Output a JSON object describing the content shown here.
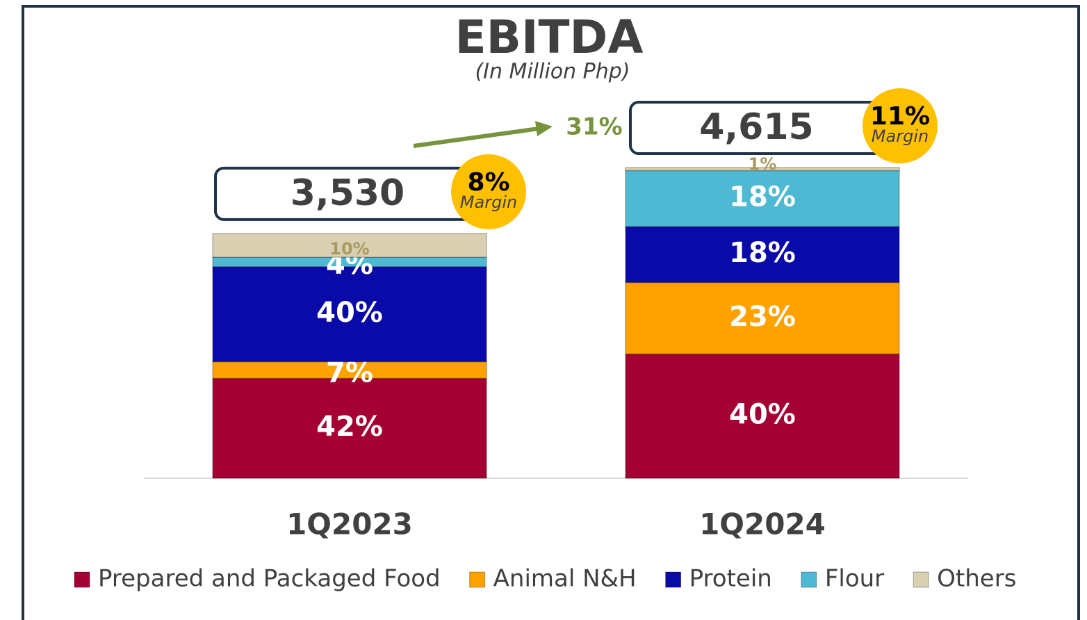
{
  "chart_data": {
    "type": "bar",
    "stacked": true,
    "title": "EBITDA",
    "subtitle": "(In Million Php)",
    "categories": [
      "1Q2023",
      "1Q2024"
    ],
    "series": [
      {
        "name": "Prepared and Packaged Food",
        "color": "#a50034",
        "values": [
          42,
          40
        ],
        "value_labels": [
          "42%",
          "40%"
        ]
      },
      {
        "name": "Animal N&H",
        "color": "#ffa200",
        "values": [
          7,
          23
        ],
        "value_labels": [
          "7%",
          "23%"
        ]
      },
      {
        "name": "Protein",
        "color": "#0a0aa8",
        "values": [
          40,
          18
        ],
        "value_labels": [
          "40%",
          "18%"
        ]
      },
      {
        "name": "Flour",
        "color": "#4fb9d4",
        "values": [
          4,
          18
        ],
        "value_labels": [
          "4%",
          "18%"
        ]
      },
      {
        "name": "Others",
        "color": "#d8d0b0",
        "values": [
          10,
          1
        ],
        "value_labels": [
          "10%",
          "1%"
        ]
      }
    ],
    "totals": {
      "values": [
        3530,
        4615
      ],
      "value_labels": [
        "3,530",
        "4,615"
      ]
    },
    "margins": {
      "values": [
        8,
        11
      ],
      "value_labels": [
        "8%",
        "11%"
      ],
      "label": "Margin"
    },
    "growth": {
      "value": 31,
      "label": "31%"
    }
  }
}
